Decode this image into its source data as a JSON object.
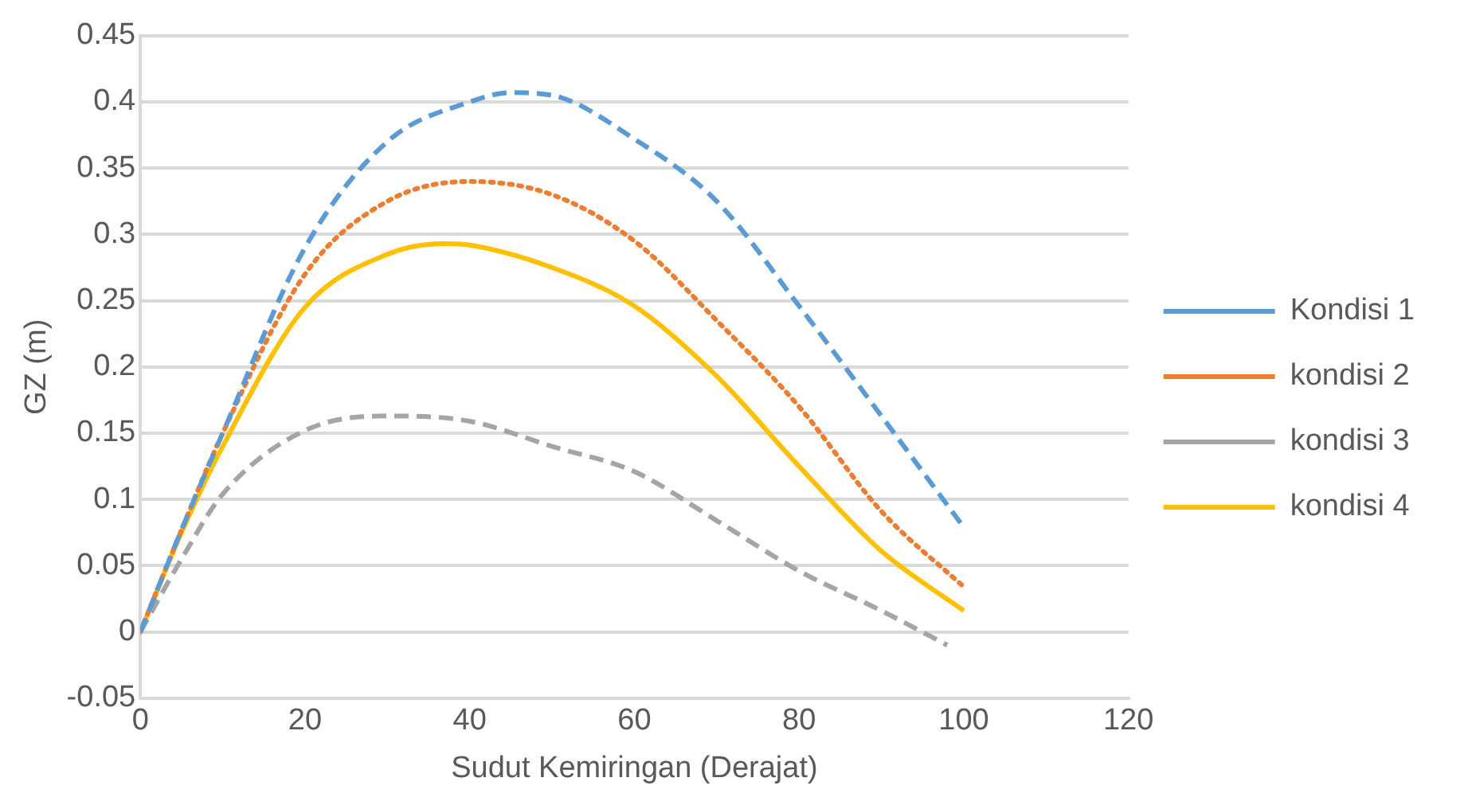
{
  "chart_data": {
    "type": "line",
    "xlabel": "Sudut Kemiringan (Derajat)",
    "ylabel": "GZ (m)",
    "xlim": [
      0,
      120
    ],
    "xticks": [
      0,
      20,
      40,
      60,
      80,
      100,
      120
    ],
    "ylim": [
      -0.05,
      0.45
    ],
    "yticks": [
      -0.05,
      0,
      0.05,
      0.1,
      0.15,
      0.2,
      0.25,
      0.3,
      0.35,
      0.4,
      0.45
    ],
    "grid": "y",
    "legend": "right",
    "marker": "none",
    "series": [
      {
        "name": "Kondisi 1",
        "color": "#5b9bd5",
        "line_style": "dashed",
        "x": [
          0,
          5,
          10,
          20,
          30,
          40,
          45,
          50,
          60,
          70,
          80,
          90,
          100
        ],
        "values": [
          0,
          0.077,
          0.15,
          0.29,
          0.37,
          0.4,
          0.407,
          0.405,
          0.372,
          0.325,
          0.246,
          0.163,
          0.079
        ]
      },
      {
        "name": "kondisi 2",
        "color": "#ed7d31",
        "line_style": "dotted",
        "x": [
          0,
          5,
          10,
          20,
          30,
          40,
          50,
          60,
          70,
          80,
          90,
          100
        ],
        "values": [
          0,
          0.077,
          0.15,
          0.27,
          0.325,
          0.34,
          0.33,
          0.295,
          0.235,
          0.17,
          0.091,
          0.034
        ]
      },
      {
        "name": "kondisi 3",
        "color": "#a5a5a5",
        "line_style": "dashed",
        "x": [
          0,
          5,
          10,
          20,
          30,
          40,
          50,
          60,
          70,
          80,
          90,
          98
        ],
        "values": [
          0,
          0.055,
          0.104,
          0.152,
          0.163,
          0.159,
          0.14,
          0.121,
          0.084,
          0.046,
          0.016,
          -0.01
        ]
      },
      {
        "name": "kondisi 4",
        "color": "#ffc000",
        "line_style": "solid",
        "x": [
          0,
          5,
          10,
          20,
          30,
          37,
          40,
          50,
          60,
          70,
          80,
          90,
          100
        ],
        "values": [
          0,
          0.075,
          0.14,
          0.245,
          0.285,
          0.293,
          0.292,
          0.275,
          0.246,
          0.193,
          0.125,
          0.061,
          0.016
        ]
      }
    ]
  }
}
